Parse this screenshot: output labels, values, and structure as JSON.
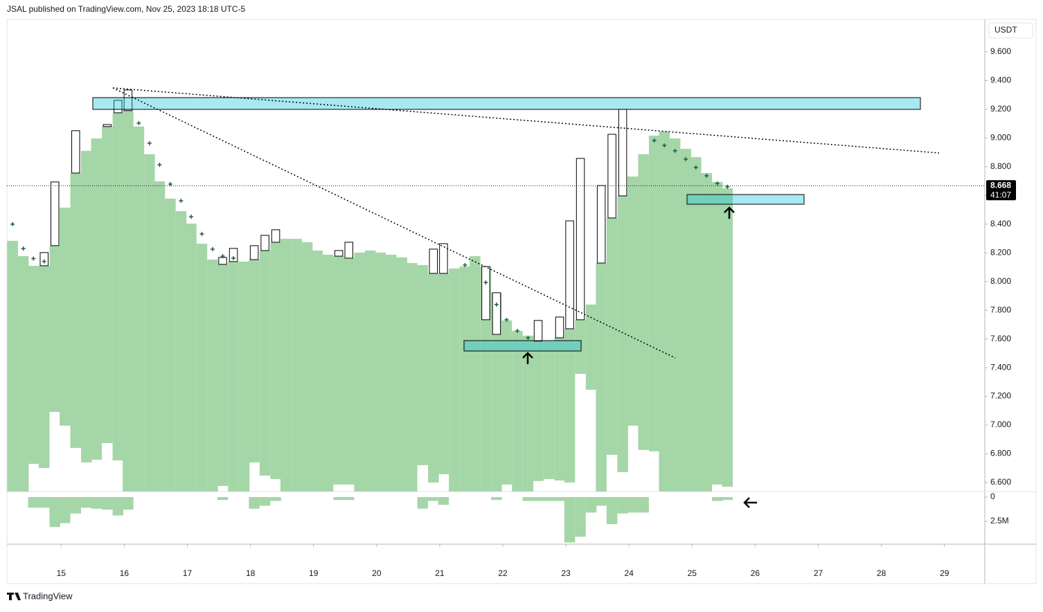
{
  "header": {
    "title": "JSAL published on TradingView.com, Nov 25, 2023 18:18 UTC-5"
  },
  "footer": {
    "brand": "TradingView"
  },
  "chart_data": {
    "type": "range_bar",
    "currency": "USDT",
    "last_price": 8.668,
    "countdown": "41:07",
    "color": "#a5d6a7",
    "sar_color": "#1e5b4a",
    "x": [
      14.23,
      14.4,
      14.56,
      14.73,
      14.9,
      15.06,
      15.23,
      15.4,
      15.56,
      15.73,
      15.9,
      16.06,
      16.23,
      16.4,
      16.56,
      16.73,
      16.9,
      17.06,
      17.23,
      17.4,
      17.56,
      17.73,
      17.9,
      18.06,
      18.23,
      18.4,
      18.56,
      18.73,
      18.9,
      19.06,
      19.23,
      19.4,
      19.56,
      19.73,
      19.9,
      20.06,
      20.23,
      20.4,
      20.56,
      20.73,
      20.9,
      21.06,
      21.23,
      21.4,
      21.56,
      21.73,
      21.9,
      22.06,
      22.23,
      22.4,
      22.56,
      22.73,
      22.9,
      23.06,
      23.23,
      23.4,
      23.56,
      23.73,
      23.9,
      24.06,
      24.23,
      24.4,
      24.56,
      24.73,
      24.9,
      25.06,
      25.23,
      25.4,
      25.56
    ],
    "values": [
      8.284,
      8.177,
      8.11,
      8.11,
      8.25,
      8.515,
      8.756,
      8.911,
      8.997,
      9.08,
      9.176,
      9.191,
      9.08,
      8.887,
      8.698,
      8.578,
      8.491,
      8.404,
      8.264,
      8.153,
      8.12,
      8.139,
      8.139,
      8.153,
      8.216,
      8.274,
      8.298,
      8.298,
      8.274,
      8.216,
      8.187,
      8.177,
      8.163,
      8.202,
      8.216,
      8.202,
      8.187,
      8.168,
      8.129,
      8.115,
      8.057,
      8.057,
      8.091,
      8.105,
      8.177,
      8.105,
      7.922,
      7.729,
      7.656,
      7.623,
      7.584,
      7.589,
      7.608,
      7.671,
      7.734,
      7.84,
      8.129,
      8.443,
      8.597,
      8.732,
      8.887,
      9.017,
      9.046,
      8.997,
      8.925,
      8.867,
      8.756,
      8.694,
      8.65
    ],
    "bases": [
      6.537,
      6.537,
      6.73,
      6.701,
      7.092,
      6.996,
      6.841,
      6.74,
      6.759,
      6.875,
      6.754,
      6.537,
      6.537,
      6.537,
      6.537,
      6.537,
      6.537,
      6.537,
      6.537,
      6.537,
      6.576,
      6.537,
      6.537,
      6.74,
      6.648,
      6.624,
      6.537,
      6.537,
      6.537,
      6.537,
      6.537,
      6.586,
      6.586,
      6.537,
      6.537,
      6.537,
      6.537,
      6.537,
      6.537,
      6.721,
      6.6,
      6.658,
      6.537,
      6.537,
      6.537,
      6.537,
      6.537,
      6.586,
      6.537,
      6.537,
      6.61,
      6.624,
      6.614,
      6.6,
      7.357,
      7.246,
      6.537,
      6.793,
      6.672,
      6.996,
      6.827,
      6.817,
      6.537,
      6.537,
      6.537,
      6.537,
      6.537,
      6.586,
      6.571
    ],
    "highs": [
      null,
      null,
      null,
      8.202,
      8.694,
      null,
      9.051,
      null,
      null,
      9.094,
      9.263,
      9.335,
      null,
      null,
      null,
      null,
      null,
      null,
      null,
      null,
      8.168,
      8.231,
      null,
      8.25,
      8.322,
      8.361,
      null,
      null,
      null,
      null,
      null,
      8.216,
      8.274,
      null,
      null,
      null,
      null,
      null,
      null,
      null,
      8.226,
      8.264,
      null,
      null,
      null,
      7.734,
      7.632,
      null,
      null,
      7.623,
      7.729,
      null,
      7.753,
      8.423,
      8.858,
      null,
      8.669,
      9.026,
      9.2,
      null,
      null,
      null,
      null,
      null,
      null,
      null,
      null,
      null,
      null
    ],
    "sar": [
      8.4,
      8.23,
      8.16,
      8.14,
      null,
      null,
      null,
      null,
      null,
      null,
      null,
      null,
      9.104,
      8.964,
      8.814,
      8.679,
      8.563,
      8.452,
      8.332,
      8.226,
      8.177,
      8.163,
      null,
      null,
      null,
      null,
      null,
      null,
      null,
      null,
      null,
      null,
      null,
      null,
      null,
      null,
      null,
      null,
      null,
      null,
      null,
      null,
      null,
      8.115,
      null,
      7.994,
      7.84,
      7.734,
      7.656,
      7.608,
      null,
      null,
      null,
      null,
      null,
      null,
      null,
      null,
      null,
      null,
      null,
      8.983,
      8.949,
      8.911,
      8.853,
      8.795,
      8.737,
      8.684,
      8.66
    ],
    "volume": [
      0,
      0,
      1100000,
      1100000,
      3100000,
      2700000,
      1700000,
      1100000,
      1200000,
      1300000,
      1900000,
      1300000,
      0,
      0,
      0,
      0,
      0,
      0,
      0,
      0,
      300000,
      0,
      0,
      1200000,
      900000,
      400000,
      0,
      0,
      0,
      0,
      0,
      300000,
      300000,
      0,
      0,
      0,
      0,
      0,
      0,
      1200000,
      400000,
      800000,
      0,
      0,
      0,
      0,
      300000,
      0,
      0,
      400000,
      400000,
      400000,
      400000,
      4700000,
      4100000,
      1600000,
      900000,
      2800000,
      1700000,
      1600000,
      1600000,
      0,
      0,
      0,
      0,
      0,
      0,
      400000,
      300000
    ],
    "xlim": [
      14.14,
      29.64
    ],
    "xticks": [
      15,
      16,
      17,
      18,
      19,
      20,
      21,
      22,
      23,
      24,
      25,
      26,
      27,
      28,
      29
    ],
    "ylim": [
      6.537,
      9.817
    ],
    "yticks": [
      {
        "value": 6.6,
        "label": "6.600"
      },
      {
        "value": 6.8,
        "label": "6.800"
      },
      {
        "value": 7.0,
        "label": "7.000"
      },
      {
        "value": 7.2,
        "label": "7.200"
      },
      {
        "value": 7.4,
        "label": "7.400"
      },
      {
        "value": 7.6,
        "label": "7.600"
      },
      {
        "value": 7.8,
        "label": "7.800"
      },
      {
        "value": 8.0,
        "label": "8.000"
      },
      {
        "value": 8.2,
        "label": "8.200"
      },
      {
        "value": 8.4,
        "label": "8.400"
      },
      {
        "value": 8.6,
        "label": "8.600"
      },
      {
        "value": 8.8,
        "label": "8.800"
      },
      {
        "value": 9.0,
        "label": "9.000"
      },
      {
        "value": 9.2,
        "label": "9.200"
      },
      {
        "value": 9.4,
        "label": "9.400"
      },
      {
        "value": 9.6,
        "label": "9.600"
      }
    ],
    "vol_ylim": [
      0,
      4800000
    ],
    "vol_ticks": [
      0,
      {
        "value": 2500000,
        "label": "2.5M"
      }
    ]
  }
}
